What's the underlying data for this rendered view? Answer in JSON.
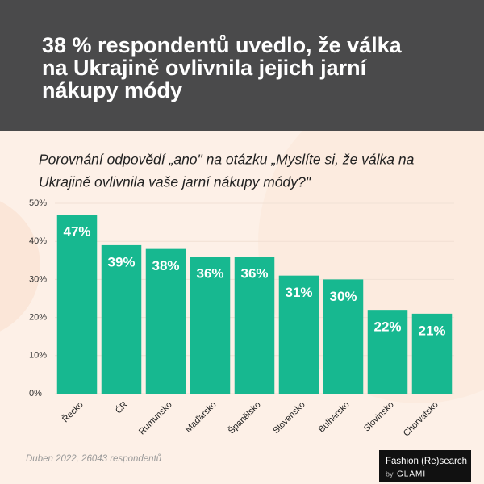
{
  "chart_data": {
    "type": "bar",
    "title": [
      "38 % respondentů uvedlo, že válka",
      "na Ukrajině ovlivnila jejich jarní",
      "nákupy módy"
    ],
    "subtitle": [
      "Porovnání odpovědí „ano\" na otázku „Myslíte si, že válka na",
      "Ukrajině ovlivnila vaše jarní nákupy módy?\""
    ],
    "categories": [
      "Řecko",
      "ČR",
      "Rumunsko",
      "Maďarsko",
      "Španělsko",
      "Slovensko",
      "Bulharsko",
      "Slovinsko",
      "Chorvatsko"
    ],
    "values": [
      47,
      39,
      38,
      36,
      36,
      31,
      30,
      22,
      21
    ],
    "value_labels": [
      "47%",
      "39%",
      "38%",
      "36%",
      "36%",
      "31%",
      "30%",
      "22%",
      "21%"
    ],
    "color": "#17b890",
    "ylim": [
      0,
      50
    ],
    "yticks": [
      {
        "value": 0,
        "label": "0%"
      },
      {
        "value": 10,
        "label": "10%"
      },
      {
        "value": 20,
        "label": "20%"
      },
      {
        "value": 30,
        "label": "30%"
      },
      {
        "value": 40,
        "label": "40%"
      },
      {
        "value": 50,
        "label": "50%"
      }
    ],
    "grid": true,
    "source": "Duben 2022, 26043 respondentů",
    "logo": {
      "line1": "Fashion (Re)search",
      "by": "by",
      "name": "GLAMI"
    }
  }
}
